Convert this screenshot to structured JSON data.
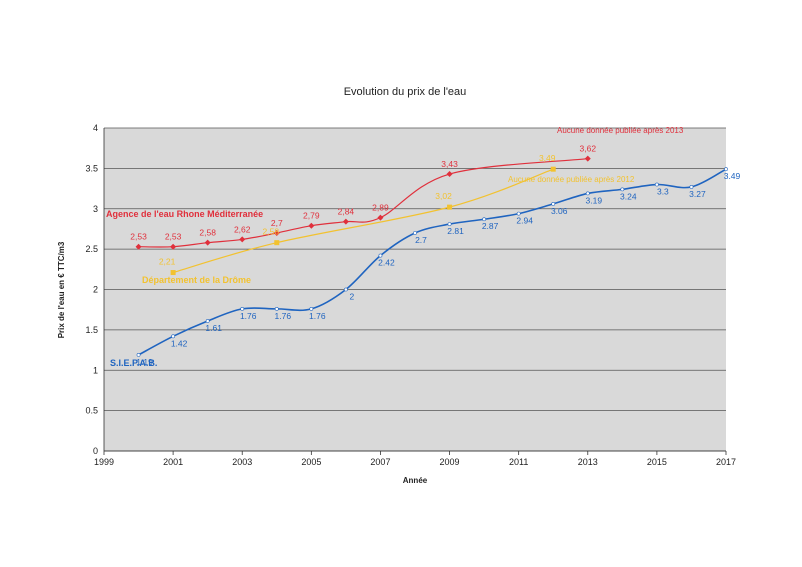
{
  "chart_data": {
    "type": "line",
    "title": "Evolution du prix de l'eau",
    "xlabel": "Année",
    "ylabel": "Prix de l'eau en € TTC/m3",
    "xlim": [
      1999,
      2017
    ],
    "ylim": [
      0,
      4
    ],
    "x_ticks": [
      "1999",
      "2001",
      "2003",
      "2005",
      "2007",
      "2009",
      "2011",
      "2013",
      "2015",
      "2017"
    ],
    "y_ticks": [
      "0",
      "0.5",
      "1",
      "1.5",
      "2",
      "2.5",
      "3",
      "3.5",
      "4"
    ],
    "grid": true,
    "series": [
      {
        "name": "Agence de l'eau Rhone Méditerranée",
        "color": "#e0303c",
        "points": [
          {
            "x": 2000,
            "y": 2.53,
            "label": "2,53"
          },
          {
            "x": 2001,
            "y": 2.53,
            "label": "2,53"
          },
          {
            "x": 2002,
            "y": 2.58,
            "label": "2,58"
          },
          {
            "x": 2003,
            "y": 2.62,
            "label": "2,62"
          },
          {
            "x": 2004,
            "y": 2.7,
            "label": "2,7"
          },
          {
            "x": 2005,
            "y": 2.79,
            "label": "2,79"
          },
          {
            "x": 2006,
            "y": 2.84,
            "label": "2,84"
          },
          {
            "x": 2007,
            "y": 2.89,
            "label": "2,89"
          },
          {
            "x": 2009,
            "y": 3.43,
            "label": "3,43"
          },
          {
            "x": 2013,
            "y": 3.62,
            "label": "3,62"
          }
        ],
        "annotation": "Aucune donnée publiée après 2013"
      },
      {
        "name": "Département de la Drôme",
        "color": "#f2c230",
        "points": [
          {
            "x": 2001,
            "y": 2.21,
            "label": "2,21"
          },
          {
            "x": 2004,
            "y": 2.58,
            "label": "2,58"
          },
          {
            "x": 2009,
            "y": 3.02,
            "label": "3,02"
          },
          {
            "x": 2012,
            "y": 3.49,
            "label": "3,49"
          }
        ],
        "annotation": "Aucune donnée publiée après 2012"
      },
      {
        "name": "S.I.E.P.A.B.",
        "color": "#1f64c0",
        "points": [
          {
            "x": 2000,
            "y": 1.19,
            "label": "1.19"
          },
          {
            "x": 2001,
            "y": 1.42,
            "label": "1.42"
          },
          {
            "x": 2002,
            "y": 1.61,
            "label": "1.61"
          },
          {
            "x": 2003,
            "y": 1.76,
            "label": "1.76"
          },
          {
            "x": 2004,
            "y": 1.76,
            "label": "1.76"
          },
          {
            "x": 2005,
            "y": 1.76,
            "label": "1.76"
          },
          {
            "x": 2006,
            "y": 2,
            "label": "2"
          },
          {
            "x": 2007,
            "y": 2.42,
            "label": "2.42"
          },
          {
            "x": 2008,
            "y": 2.7,
            "label": "2.7"
          },
          {
            "x": 2009,
            "y": 2.81,
            "label": "2.81"
          },
          {
            "x": 2010,
            "y": 2.87,
            "label": "2.87"
          },
          {
            "x": 2011,
            "y": 2.94,
            "label": "2.94"
          },
          {
            "x": 2012,
            "y": 3.06,
            "label": "3.06"
          },
          {
            "x": 2013,
            "y": 3.19,
            "label": "3.19"
          },
          {
            "x": 2014,
            "y": 3.24,
            "label": "3.24"
          },
          {
            "x": 2015,
            "y": 3.3,
            "label": "3.3"
          },
          {
            "x": 2016,
            "y": 3.27,
            "label": "3.27"
          },
          {
            "x": 2017,
            "y": 3.49,
            "label": "3.49"
          }
        ]
      }
    ],
    "colors": {
      "plot_background": "#d9d9d9",
      "gridline": "#555555"
    }
  }
}
